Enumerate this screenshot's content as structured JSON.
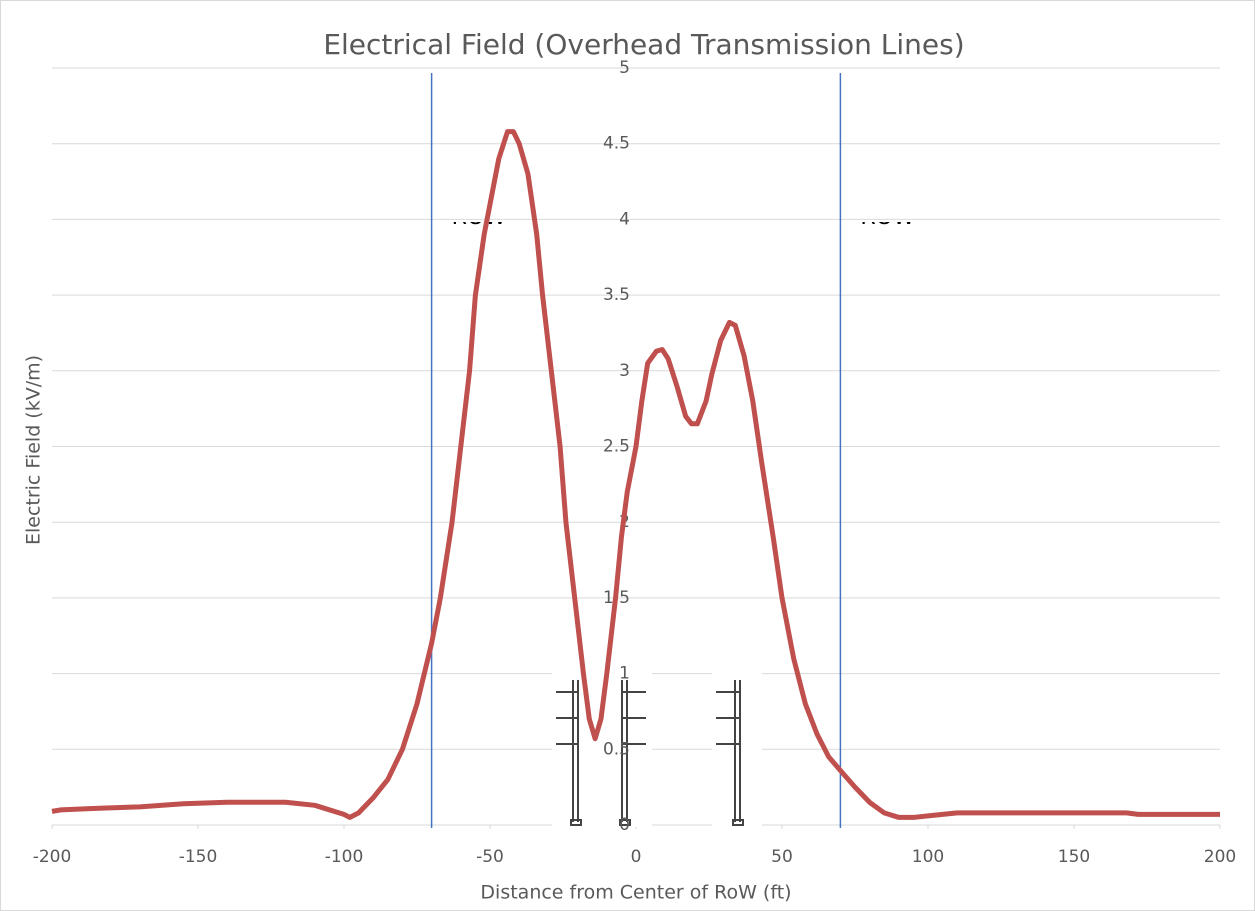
{
  "chart_data": {
    "type": "line",
    "title": "Electrical Field (Overhead Transmission Lines)",
    "x_label": "Distance from Center of RoW (ft)",
    "y_label": "Electric Field (kV/m)",
    "x": [
      -200,
      -197,
      -185,
      -170,
      -155,
      -140,
      -120,
      -110,
      -100,
      -98,
      -95,
      -90,
      -85,
      -80,
      -75,
      -70,
      -67,
      -63,
      -60,
      -57,
      -55,
      -52,
      -50,
      -47,
      -44,
      -42,
      -40,
      -37,
      -34,
      -32,
      -29,
      -26,
      -24,
      -21,
      -18,
      -16,
      -14,
      -12,
      -10,
      -7,
      -5,
      -3,
      0,
      2,
      4,
      7,
      9,
      11,
      14,
      17,
      19,
      21,
      24,
      26,
      29,
      32,
      34,
      37,
      40,
      43,
      47,
      50,
      54,
      58,
      62,
      66,
      70,
      75,
      80,
      85,
      90,
      95,
      100,
      110,
      120,
      150,
      168,
      172,
      200
    ],
    "series": [
      {
        "color": "#c0504d",
        "values": [
          0.09,
          0.1,
          0.11,
          0.12,
          0.14,
          0.15,
          0.15,
          0.13,
          0.07,
          0.05,
          0.08,
          0.18,
          0.3,
          0.5,
          0.8,
          1.2,
          1.5,
          2.0,
          2.5,
          3.0,
          3.5,
          3.9,
          4.1,
          4.4,
          4.58,
          4.58,
          4.5,
          4.3,
          3.9,
          3.5,
          3.0,
          2.5,
          2.0,
          1.5,
          1.0,
          0.7,
          0.57,
          0.7,
          1.0,
          1.5,
          1.9,
          2.2,
          2.5,
          2.8,
          3.05,
          3.13,
          3.14,
          3.08,
          2.9,
          2.7,
          2.65,
          2.65,
          2.8,
          2.98,
          3.2,
          3.32,
          3.3,
          3.1,
          2.8,
          2.4,
          1.9,
          1.5,
          1.1,
          0.8,
          0.6,
          0.45,
          0.36,
          0.25,
          0.15,
          0.08,
          0.05,
          0.05,
          0.06,
          0.08,
          0.08,
          0.08,
          0.08,
          0.07,
          0.07
        ]
      }
    ],
    "xlim": [
      -200,
      200
    ],
    "xticks": [
      -200,
      -150,
      -100,
      -50,
      0,
      50,
      100,
      150,
      200
    ],
    "ylim": [
      0,
      5
    ],
    "yticks": [
      0,
      0.5,
      1,
      1.5,
      2,
      2.5,
      3,
      3.5,
      4,
      4.5,
      5
    ],
    "grid": true,
    "annotations": [
      {
        "text": "ROW",
        "x": -70,
        "color": "#4472c4"
      },
      {
        "text": "ROW",
        "x": 70,
        "color": "#4472c4"
      }
    ]
  }
}
